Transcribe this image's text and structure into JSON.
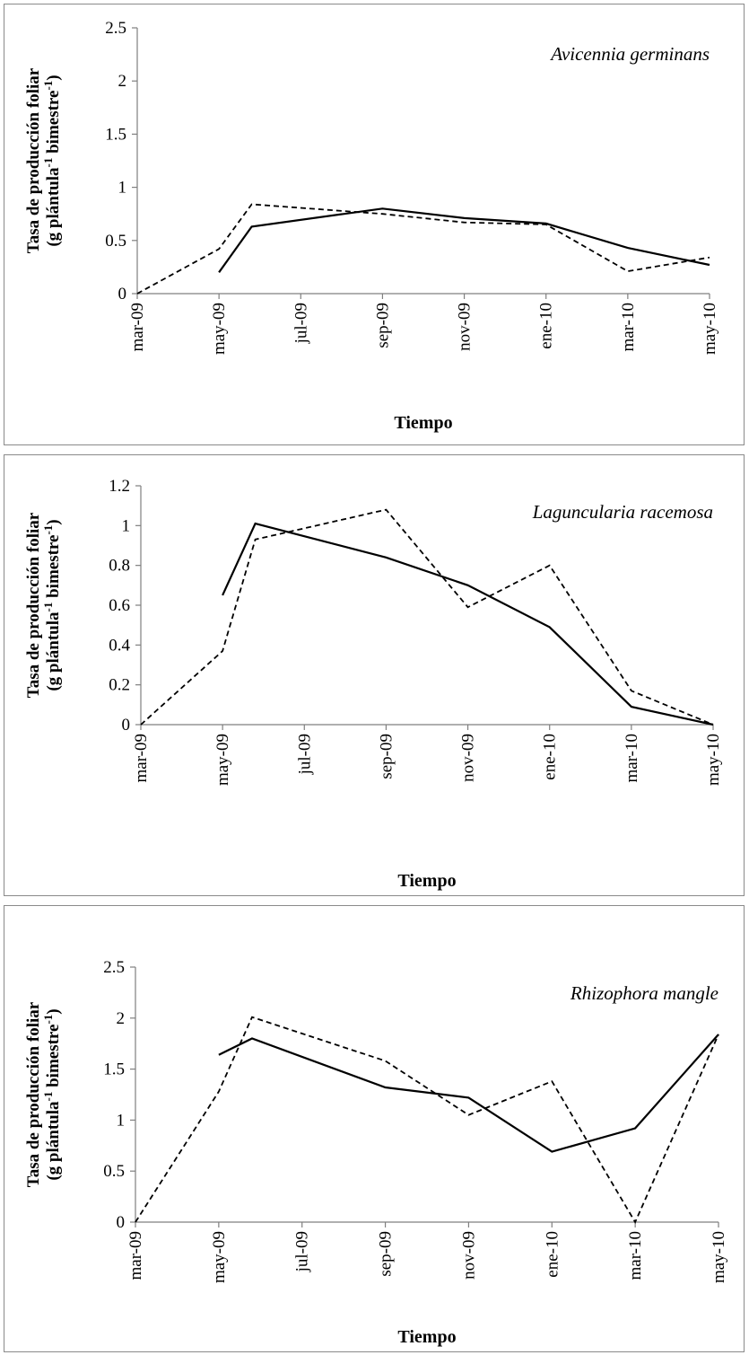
{
  "chart_data": [
    {
      "type": "line",
      "annotation": "Avicennia germinans",
      "xlabel": "Tiempo",
      "ylabel_line1": "Tasa de producción foliar",
      "ylabel_line2_pre": "(g plántula",
      "ylabel_sup1": "-1",
      "ylabel_line2_mid": " bimestre",
      "ylabel_sup2": "-1",
      "ylabel_line2_post": ")",
      "ylim": [
        0,
        2.5
      ],
      "yticks": [
        "0",
        "0.5",
        "1",
        "1.5",
        "2",
        "2.5"
      ],
      "ytick_values": [
        0,
        0.5,
        1,
        1.5,
        2,
        2.5
      ],
      "xticks": [
        "mar-09",
        "may-09",
        "jul-09",
        "sep-09",
        "nov-09",
        "ene-10",
        "mar-10",
        "may-10"
      ],
      "series": [
        {
          "style": "solid",
          "x": [
            1,
            1.4,
            3,
            4,
            5,
            6,
            7
          ],
          "y": [
            0.2,
            0.63,
            0.8,
            0.71,
            0.66,
            0.43,
            0.27
          ]
        },
        {
          "style": "dashed",
          "x": [
            0,
            1,
            1.4,
            3,
            4,
            5,
            6,
            7
          ],
          "y": [
            0,
            0.42,
            0.84,
            0.75,
            0.67,
            0.65,
            0.21,
            0.34
          ]
        }
      ]
    },
    {
      "type": "line",
      "annotation": "Laguncularia racemosa",
      "xlabel": "Tiempo",
      "ylabel_line1": "Tasa de producción foliar",
      "ylabel_line2_pre": "(g plántula",
      "ylabel_sup1": "-1",
      "ylabel_line2_mid": " bimestre",
      "ylabel_sup2": "-1",
      "ylabel_line2_post": ")",
      "ylim": [
        0,
        1.2
      ],
      "yticks": [
        "0",
        "0.2",
        "0.4",
        "0.6",
        "0.8",
        "1",
        "1.2"
      ],
      "ytick_values": [
        0,
        0.2,
        0.4,
        0.6,
        0.8,
        1,
        1.2
      ],
      "xticks": [
        "mar-09",
        "may-09",
        "jul-09",
        "sep-09",
        "nov-09",
        "ene-10",
        "mar-10",
        "may-10"
      ],
      "series": [
        {
          "style": "solid",
          "x": [
            1,
            1.4,
            3,
            4,
            5,
            6,
            7
          ],
          "y": [
            0.65,
            1.01,
            0.84,
            0.7,
            0.49,
            0.09,
            0
          ]
        },
        {
          "style": "dashed",
          "x": [
            0,
            1,
            1.4,
            3,
            4,
            5,
            6,
            7
          ],
          "y": [
            0,
            0.37,
            0.93,
            1.08,
            0.59,
            0.8,
            0.17,
            0
          ]
        }
      ]
    },
    {
      "type": "line",
      "annotation": "Rhizophora mangle",
      "xlabel": "Tiempo",
      "ylabel_line1": "Tasa de producción foliar",
      "ylabel_line2_pre": "(g plántula",
      "ylabel_sup1": "-1",
      "ylabel_line2_mid": " bimestre",
      "ylabel_sup2": "-1",
      "ylabel_line2_post": ")",
      "ylim": [
        0,
        2.5
      ],
      "yticks": [
        "0",
        "0.5",
        "1",
        "1.5",
        "2",
        "2.5"
      ],
      "ytick_values": [
        0,
        0.5,
        1,
        1.5,
        2,
        2.5
      ],
      "xticks": [
        "mar-09",
        "may-09",
        "jul-09",
        "sep-09",
        "nov-09",
        "ene-10",
        "mar-10",
        "may-10"
      ],
      "series": [
        {
          "style": "solid",
          "x": [
            1,
            1.4,
            3,
            4,
            5,
            6,
            7
          ],
          "y": [
            1.64,
            1.8,
            1.32,
            1.22,
            0.69,
            0.92,
            1.84
          ]
        },
        {
          "style": "dashed",
          "x": [
            0,
            1,
            1.4,
            3,
            4,
            5,
            6,
            7
          ],
          "y": [
            0,
            1.28,
            2.01,
            1.58,
            1.05,
            1.38,
            0,
            1.84
          ]
        }
      ]
    }
  ]
}
